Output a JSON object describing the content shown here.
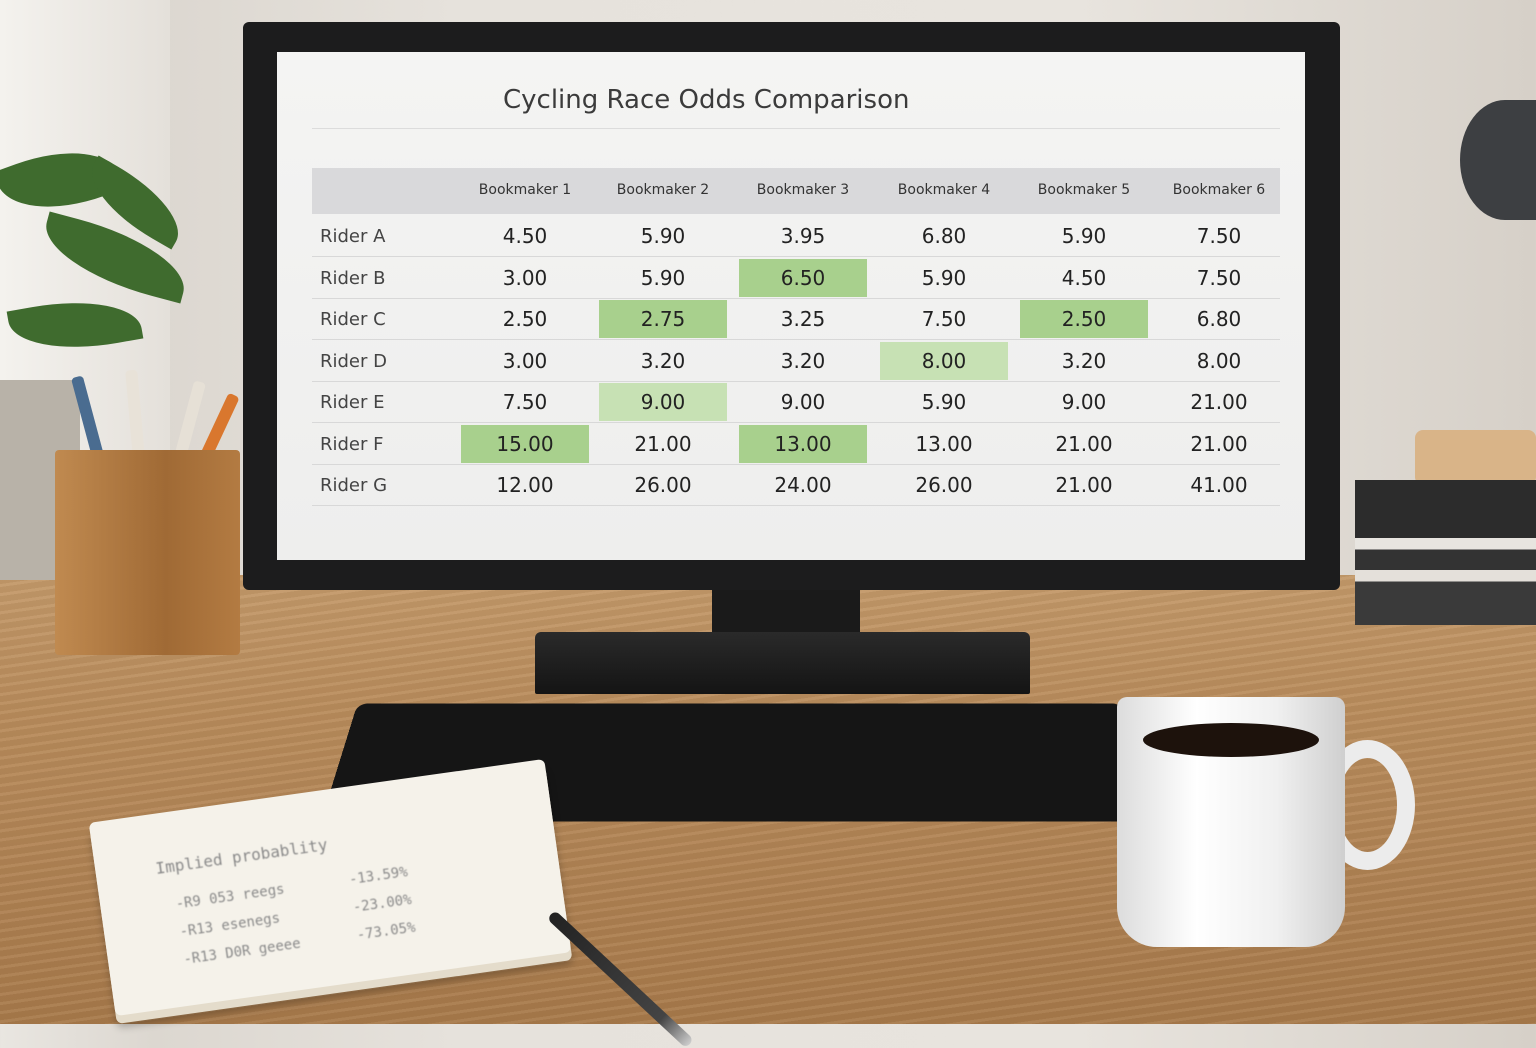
{
  "screen": {
    "title": "Cycling Race Odds Comparison",
    "columns": [
      "Bookmaker 1",
      "Bookmaker 2",
      "Bookmaker 3",
      "Bookmaker 4",
      "Bookmaker 5",
      "Bookmaker 6"
    ],
    "rows": [
      {
        "label": "Rider A",
        "values": [
          "4.50",
          "5.90",
          "3.95",
          "6.80",
          "5.90",
          "7.50"
        ],
        "highlight": []
      },
      {
        "label": "Rider B",
        "values": [
          "3.00",
          "5.90",
          "6.50",
          "5.90",
          "4.50",
          "7.50"
        ],
        "highlight": [
          2
        ]
      },
      {
        "label": "Rider C",
        "values": [
          "2.50",
          "2.75",
          "3.25",
          "7.50",
          "2.50",
          "6.80"
        ],
        "highlight": [
          1,
          4
        ]
      },
      {
        "label": "Rider D",
        "values": [
          "3.00",
          "3.20",
          "3.20",
          "8.00",
          "3.20",
          "8.00"
        ],
        "highlight_light": [
          3
        ]
      },
      {
        "label": "Rider E",
        "values": [
          "7.50",
          "9.00",
          "9.00",
          "5.90",
          "9.00",
          "21.00"
        ],
        "highlight_light": [
          1
        ]
      },
      {
        "label": "Rider F",
        "values": [
          "15.00",
          "21.00",
          "13.00",
          "13.00",
          "21.00",
          "21.00"
        ],
        "highlight": [
          0,
          2
        ]
      },
      {
        "label": "Rider G",
        "values": [
          "12.00",
          "26.00",
          "24.00",
          "26.00",
          "21.00",
          "41.00"
        ],
        "highlight": []
      }
    ],
    "colors": {
      "highlight": "#a8d08d",
      "highlight_light": "#c7e1b4",
      "header": "#d9d9db"
    }
  },
  "notepad": {
    "heading": "Implied probablity",
    "lines": [
      {
        "left": "-R9 053 reegs",
        "right": "-13.59%"
      },
      {
        "left": "-R13 esenegs",
        "right": "-23.00%"
      },
      {
        "left": "-R13 D0R geeee",
        "right": "-73.05%"
      }
    ]
  }
}
